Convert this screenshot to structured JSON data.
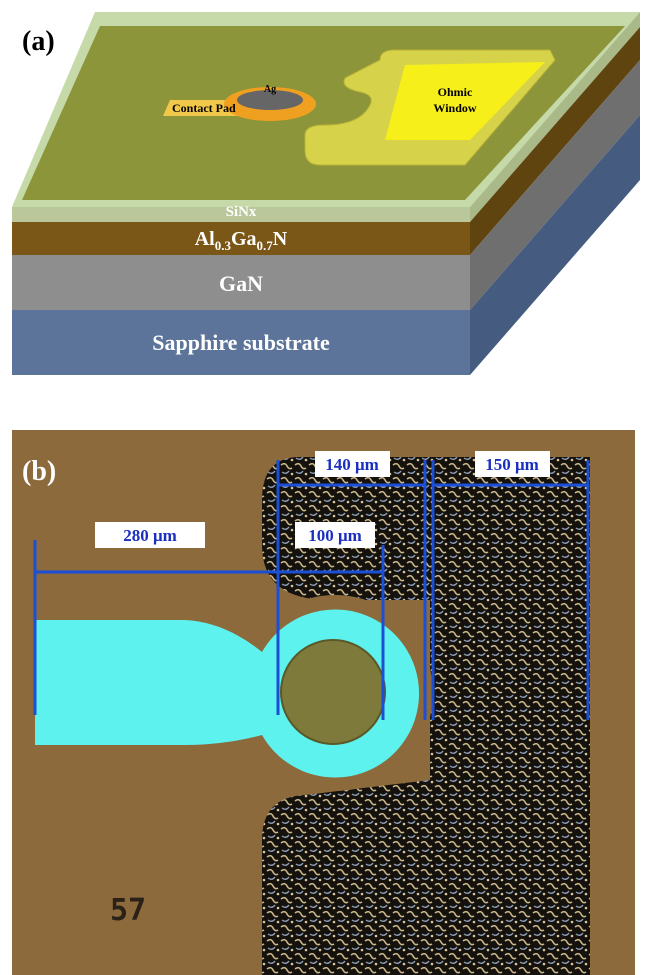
{
  "panel_a": {
    "label": "(a)",
    "contact_pad": "Contact Pad",
    "ag": "Ag",
    "ohmic_window": [
      "Ohmic",
      "Window"
    ],
    "layers": {
      "sinx": "SiNx",
      "algan": [
        "Al",
        "0.3",
        "Ga",
        "0.7",
        "N"
      ],
      "gan": "GaN",
      "sapphire": "Sapphire substrate"
    }
  },
  "panel_b": {
    "label": "(b)",
    "dimensions": [
      "280 μm",
      "100 μm",
      "140 μm",
      "150 μm"
    ],
    "chip_mark": "57"
  }
}
